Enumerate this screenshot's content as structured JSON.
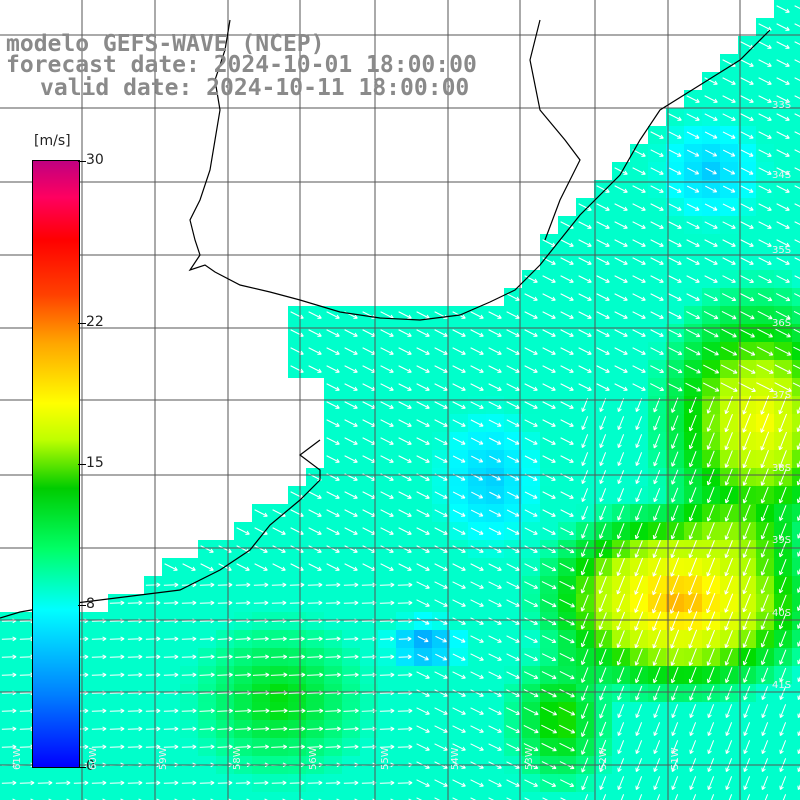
{
  "title": {
    "model": "modelo GEFS-WAVE (NCEP)",
    "forecast": "forecast date: 2024-10-01 18:00:00",
    "valid": "valid date: 2024-10-11 18:00:00"
  },
  "colorbar": {
    "unit": "[m/s]",
    "ticks": [
      {
        "value": 0,
        "label": "0"
      },
      {
        "value": 8,
        "label": "8"
      },
      {
        "value": 15,
        "label": "15"
      },
      {
        "value": 22,
        "label": "22"
      },
      {
        "value": 30,
        "label": "30"
      }
    ]
  },
  "lat_labels": [
    "33S",
    "34S",
    "35S",
    "36S",
    "37S",
    "38S",
    "39S",
    "40S",
    "41S"
  ],
  "lon_labels": [
    "61W",
    "60W",
    "59W",
    "58W",
    "56W",
    "55W",
    "54W",
    "53W",
    "52W",
    "51W"
  ],
  "colors": {
    "land": "#ffffff",
    "coast": "#000000",
    "grid": "#555555",
    "arrow": "#ffffff",
    "title": "#8a8a8a"
  },
  "field": {
    "variable": "wind speed",
    "units": "m/s",
    "range": [
      0,
      30
    ],
    "arrow_style": "white arrows showing direction"
  }
}
